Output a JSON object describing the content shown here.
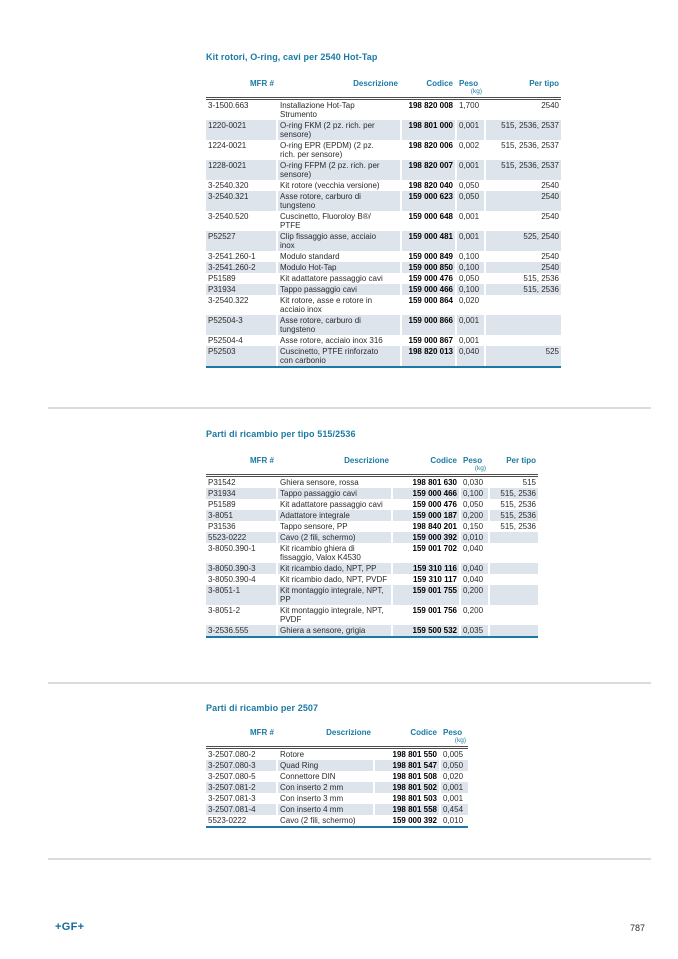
{
  "colors": {
    "accent": "#1b7aa3",
    "row_shade": "#dde4eb"
  },
  "sections": [
    {
      "title": "Kit rotori, O-ring, cavi per 2540 Hot-Tap",
      "headers": {
        "mfr": "MFR #",
        "desc": "Descrizione",
        "code": "Codice",
        "weight": "Peso",
        "weight_unit": "(kg)",
        "type": "Per tipo"
      },
      "rows": [
        {
          "mfr": "3-1500.663",
          "desc": "Installazione Hot-Tap Strumento",
          "code": "198 820 008",
          "weight": "1,700",
          "type": "2540"
        },
        {
          "mfr": "1220-0021",
          "desc": "O-ring FKM (2 pz. rich. per sensore)",
          "code": "198 801 000",
          "weight": "0,001",
          "type": "515, 2536, 2537"
        },
        {
          "mfr": "1224-0021",
          "desc": "O-ring EPR (EPDM) (2 pz. rich. per sensore)",
          "code": "198 820 006",
          "weight": "0,002",
          "type": "515, 2536, 2537"
        },
        {
          "mfr": "1228-0021",
          "desc": "O-ring FFPM (2 pz. rich. per sensore)",
          "code": "198 820 007",
          "weight": "0,001",
          "type": "515, 2536, 2537"
        },
        {
          "mfr": "3-2540.320",
          "desc": "Kit rotore (vecchia versione)",
          "code": "198 820 040",
          "weight": "0,050",
          "type": "2540"
        },
        {
          "mfr": "3-2540.321",
          "desc": "Asse rotore, carburo di tungsteno",
          "code": "159 000 623",
          "weight": "0,050",
          "type": "2540"
        },
        {
          "mfr": "3-2540.520",
          "desc": "Cuscinetto, Fluoroloy B®/ PTFE",
          "code": "159 000 648",
          "weight": "0,001",
          "type": "2540"
        },
        {
          "mfr": "P52527",
          "desc": "Clip fissaggio asse, acciaio inox",
          "code": "159 000 481",
          "weight": "0,001",
          "type": "525, 2540"
        },
        {
          "mfr": "3-2541.260-1",
          "desc": "Modulo standard",
          "code": "159 000 849",
          "weight": "0,100",
          "type": "2540"
        },
        {
          "mfr": "3-2541.260-2",
          "desc": "Modulo Hot-Tap",
          "code": "159 000 850",
          "weight": "0,100",
          "type": "2540"
        },
        {
          "mfr": "P51589",
          "desc": "Kit adattatore passaggio cavi",
          "code": "159 000 476",
          "weight": "0,050",
          "type": "515, 2536"
        },
        {
          "mfr": "P31934",
          "desc": "Tappo passaggio cavi",
          "code": "159 000 466",
          "weight": "0,100",
          "type": "515, 2536"
        },
        {
          "mfr": "3-2540.322",
          "desc": "Kit rotore, asse e rotore in acciaio inox",
          "code": "159 000 864",
          "weight": "0,020",
          "type": ""
        },
        {
          "mfr": "P52504-3",
          "desc": "Asse rotore, carburo di tungsteno",
          "code": "159 000 866",
          "weight": "0,001",
          "type": ""
        },
        {
          "mfr": "P52504-4",
          "desc": "Asse rotore, acciaio inox 316",
          "code": "159 000 867",
          "weight": "0,001",
          "type": ""
        },
        {
          "mfr": "P52503",
          "desc": "Cuscinetto, PTFE rinforzato con carbonio",
          "code": "198 820 013",
          "weight": "0,040",
          "type": "525"
        }
      ]
    },
    {
      "title": "Parti di ricambio per tipo 515/2536",
      "headers": {
        "mfr": "MFR #",
        "desc": "Descrizione",
        "code": "Codice",
        "weight": "Peso",
        "weight_unit": "(kg)",
        "type": "Per tipo"
      },
      "rows": [
        {
          "mfr": "P31542",
          "desc": "Ghiera sensore, rossa",
          "code": "198 801 630",
          "weight": "0,030",
          "type": "515"
        },
        {
          "mfr": "P31934",
          "desc": "Tappo passaggio cavi",
          "code": "159 000 466",
          "weight": "0,100",
          "type": "515, 2536"
        },
        {
          "mfr": "P51589",
          "desc": "Kit adattatore passaggio cavi",
          "code": "159 000 476",
          "weight": "0,050",
          "type": "515, 2536"
        },
        {
          "mfr": "3-8051",
          "desc": "Adattatore integrale",
          "code": "159 000 187",
          "weight": "0,200",
          "type": "515, 2536"
        },
        {
          "mfr": "P31536",
          "desc": "Tappo sensore, PP",
          "code": "198 840 201",
          "weight": "0,150",
          "type": "515, 2536"
        },
        {
          "mfr": "5523-0222",
          "desc": "Cavo (2 fili, schermo)",
          "code": "159 000 392",
          "weight": "0,010",
          "type": ""
        },
        {
          "mfr": "3-8050.390-1",
          "desc": "Kit ricambio ghiera di fissaggio, Valox K4530",
          "code": "159 001 702",
          "weight": "0,040",
          "type": ""
        },
        {
          "mfr": "3-8050.390-3",
          "desc": "Kit ricambio dado, NPT, PP",
          "code": "159 310 116",
          "weight": "0,040",
          "type": ""
        },
        {
          "mfr": "3-8050.390-4",
          "desc": "Kit ricambio dado, NPT, PVDF",
          "code": "159 310 117",
          "weight": "0,040",
          "type": ""
        },
        {
          "mfr": "3-8051-1",
          "desc": "Kit montaggio integrale, NPT, PP",
          "code": "159 001 755",
          "weight": "0,200",
          "type": ""
        },
        {
          "mfr": "3-8051-2",
          "desc": "Kit montaggio integrale, NPT, PVDF",
          "code": "159 001 756",
          "weight": "0,200",
          "type": ""
        },
        {
          "mfr": "3-2536.555",
          "desc": "Ghiera a sensore, grigia",
          "code": "159 500 532",
          "weight": "0,035",
          "type": ""
        }
      ]
    },
    {
      "title": "Parti di ricambio per 2507",
      "headers": {
        "mfr": "MFR #",
        "desc": "Descrizione",
        "code": "Codice",
        "weight": "Peso",
        "weight_unit": "(kg)"
      },
      "rows": [
        {
          "mfr": "3-2507.080-2",
          "desc": "Rotore",
          "code": "198 801 550",
          "weight": "0,005"
        },
        {
          "mfr": "3-2507.080-3",
          "desc": "Quad Ring",
          "code": "198 801 547",
          "weight": "0,050"
        },
        {
          "mfr": "3-2507.080-5",
          "desc": "Connettore DIN",
          "code": "198 801 508",
          "weight": "0,020"
        },
        {
          "mfr": "3-2507.081-2",
          "desc": "Con inserto 2 mm",
          "code": "198 801 502",
          "weight": "0,001"
        },
        {
          "mfr": "3-2507.081-3",
          "desc": "Con inserto 3 mm",
          "code": "198 801 503",
          "weight": "0,001"
        },
        {
          "mfr": "3-2507.081-4",
          "desc": "Con inserto 4 mm",
          "code": "198 801 558",
          "weight": "0,454"
        },
        {
          "mfr": "5523-0222",
          "desc": "Cavo (2 fili, schermo)",
          "code": "159 000 392",
          "weight": "0,010"
        }
      ]
    }
  ],
  "footer": {
    "brand": "+GF+",
    "page": "787"
  }
}
